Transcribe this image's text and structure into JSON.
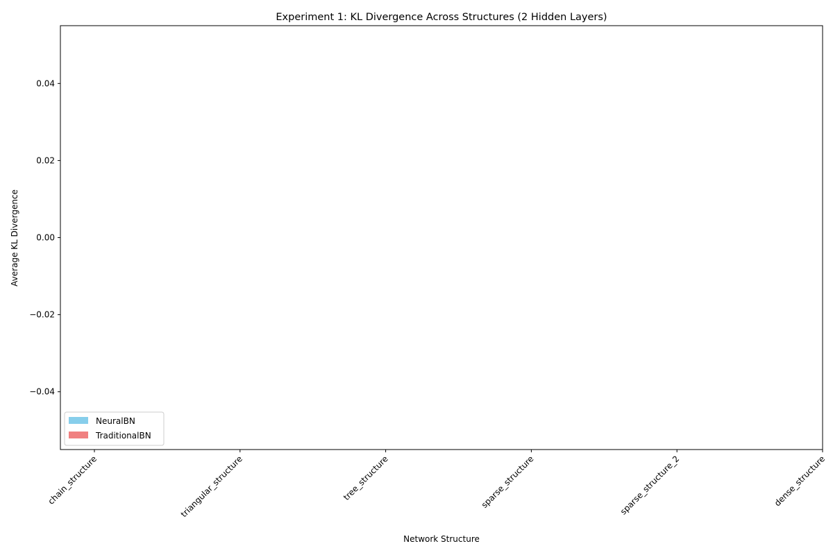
{
  "chart_data": {
    "type": "bar",
    "title": "Experiment 1: KL Divergence Across Structures (2 Hidden Layers)",
    "xlabel": "Network Structure",
    "ylabel": "Average KL Divergence",
    "categories": [
      "chain_structure",
      "triangular_structure",
      "tree_structure",
      "sparse_structure",
      "sparse_structure_2",
      "dense_structure"
    ],
    "series": [
      {
        "name": "NeuralBN",
        "color": "#87CEEB",
        "values": [
          null,
          null,
          null,
          null,
          null,
          null
        ]
      },
      {
        "name": "TraditionalBN",
        "color": "#F08080",
        "values": [
          null,
          null,
          null,
          null,
          null,
          null
        ]
      }
    ],
    "ylim": [
      -0.055,
      0.055
    ],
    "yticks": [
      -0.04,
      -0.02,
      0.0,
      0.02,
      0.04
    ],
    "ytick_labels": [
      "−0.04",
      "−0.02",
      "0.00",
      "0.02",
      "0.04"
    ],
    "grid": false,
    "legend_placement": "lower-left"
  }
}
